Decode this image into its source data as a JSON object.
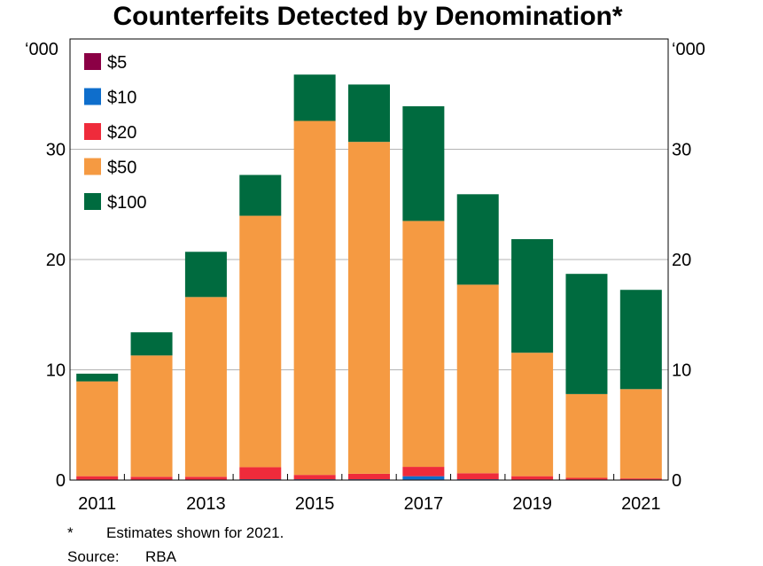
{
  "chart_data": {
    "type": "bar",
    "stacked": true,
    "title": "Counterfeits Detected by Denomination*",
    "unit_left": "‘000",
    "unit_right": "‘000",
    "categories": [
      "2011",
      "2012",
      "2013",
      "2014",
      "2015",
      "2016",
      "2017",
      "2018",
      "2019",
      "2020",
      "2021"
    ],
    "x_tick_labels": [
      "2011",
      "",
      "2013",
      "",
      "2015",
      "",
      "2017",
      "",
      "2019",
      "",
      "2021"
    ],
    "y_ticks": [
      "0",
      "10",
      "20",
      "30"
    ],
    "ylim": [
      0,
      40
    ],
    "grid": true,
    "legend_position": "top-left",
    "series": [
      {
        "name": "$5",
        "color": "#8b0045",
        "values": [
          0.02,
          0.02,
          0.02,
          0.02,
          0.02,
          0.02,
          0.05,
          0.02,
          0.02,
          0.02,
          0.02
        ]
      },
      {
        "name": "$10",
        "color": "#0e6ecc",
        "values": [
          0.03,
          0.03,
          0.03,
          0.05,
          0.05,
          0.05,
          0.3,
          0.05,
          0.03,
          0.03,
          0.03
        ]
      },
      {
        "name": "$20",
        "color": "#ef2b3b",
        "values": [
          0.3,
          0.25,
          0.25,
          1.1,
          0.4,
          0.5,
          0.85,
          0.55,
          0.3,
          0.15,
          0.1
        ]
      },
      {
        "name": "$50",
        "color": "#f59a42",
        "values": [
          8.6,
          11.0,
          16.3,
          22.8,
          32.1,
          30.1,
          22.3,
          17.1,
          11.2,
          7.6,
          8.1
        ]
      },
      {
        "name": "$100",
        "color": "#006b3f",
        "values": [
          0.7,
          2.1,
          4.1,
          3.7,
          4.2,
          5.2,
          10.4,
          8.2,
          10.3,
          10.9,
          9.0
        ]
      }
    ]
  },
  "footnote": {
    "marker": "*",
    "text": "Estimates shown for 2021."
  },
  "source": {
    "label": "Source:",
    "text": "RBA"
  }
}
